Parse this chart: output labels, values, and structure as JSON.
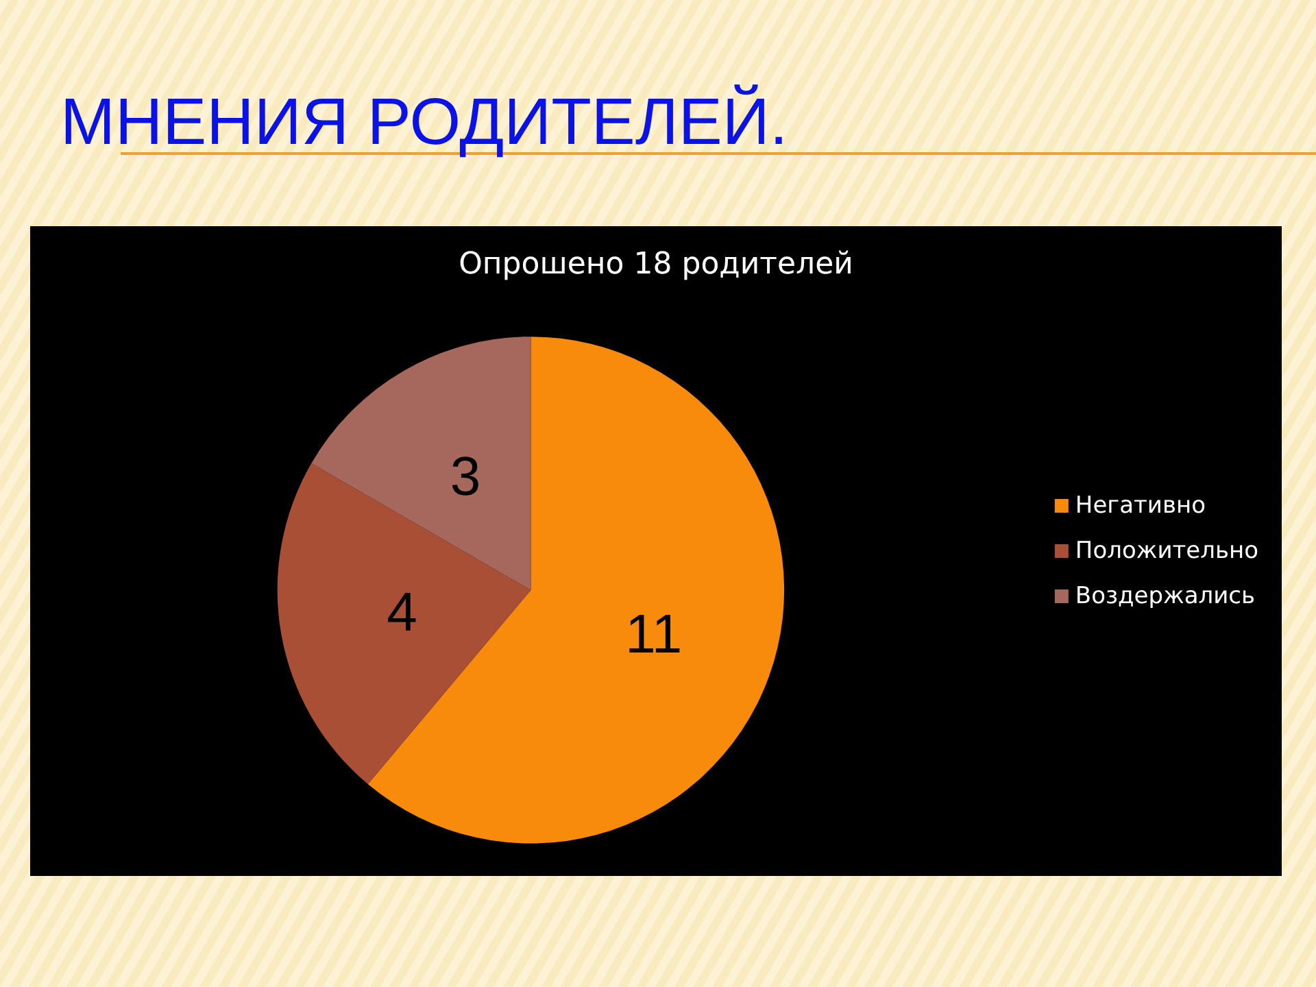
{
  "chart_data": {
    "type": "pie",
    "title": "МНЕНИЯ РОДИТЕЛЕЙ.",
    "subtitle": "Опрошено 18 родителей",
    "categories": [
      "Негативно",
      "Положительно",
      "Воздержались"
    ],
    "values": [
      11,
      4,
      3
    ],
    "colors": [
      "#f98b0c",
      "#a84f35",
      "#a6675c"
    ],
    "data_labels": true,
    "legend": "right"
  }
}
